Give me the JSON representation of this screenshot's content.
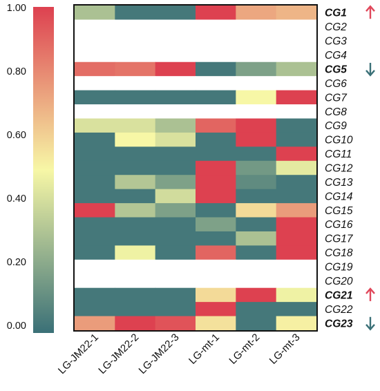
{
  "chart_data": {
    "type": "heatmap",
    "columns": [
      "LG-JM22-1",
      "LG-JM22-2",
      "LG-JM22-3",
      "LG-mt-1",
      "LG-mt-2",
      "LG-mt-3"
    ],
    "rows": [
      {
        "label": "CG1",
        "values": [
          0.3,
          0.03,
          0.03,
          1.0,
          0.72,
          0.68
        ],
        "highlight": "up"
      },
      {
        "label": "CG2",
        "values": [
          null,
          null,
          null,
          null,
          null,
          null
        ]
      },
      {
        "label": "CG3",
        "values": [
          null,
          null,
          null,
          null,
          null,
          null
        ]
      },
      {
        "label": "CG4",
        "values": [
          null,
          null,
          null,
          null,
          null,
          null
        ]
      },
      {
        "label": "CG5",
        "values": [
          0.88,
          0.86,
          1.0,
          0.03,
          0.18,
          0.3
        ],
        "highlight": "down"
      },
      {
        "label": "CG6",
        "values": [
          null,
          null,
          null,
          null,
          null,
          null
        ]
      },
      {
        "label": "CG7",
        "values": [
          0.03,
          0.03,
          0.03,
          0.03,
          0.5,
          1.0
        ]
      },
      {
        "label": "CG8",
        "values": [
          null,
          null,
          null,
          null,
          null,
          null
        ]
      },
      {
        "label": "CG9",
        "values": [
          0.42,
          0.42,
          0.3,
          0.9,
          1.0,
          0.03
        ]
      },
      {
        "label": "CG10",
        "values": [
          0.03,
          0.5,
          0.42,
          0.03,
          1.0,
          0.03
        ]
      },
      {
        "label": "CG11",
        "values": [
          0.03,
          0.03,
          0.03,
          0.03,
          0.03,
          1.0
        ]
      },
      {
        "label": "CG12",
        "values": [
          0.03,
          0.03,
          0.03,
          1.0,
          0.15,
          0.45
        ]
      },
      {
        "label": "CG13",
        "values": [
          0.03,
          0.32,
          0.18,
          1.0,
          0.1,
          0.03
        ]
      },
      {
        "label": "CG14",
        "values": [
          0.03,
          0.03,
          0.4,
          1.0,
          0.03,
          0.03
        ]
      },
      {
        "label": "CG15",
        "values": [
          1.0,
          0.32,
          0.18,
          0.03,
          0.58,
          0.75
        ]
      },
      {
        "label": "CG16",
        "values": [
          0.03,
          0.03,
          0.03,
          0.18,
          0.03,
          1.0
        ]
      },
      {
        "label": "CG17",
        "values": [
          0.03,
          0.03,
          0.03,
          0.03,
          0.3,
          1.0
        ]
      },
      {
        "label": "CG18",
        "values": [
          0.03,
          0.48,
          0.03,
          0.9,
          0.03,
          1.0
        ]
      },
      {
        "label": "CG19",
        "values": [
          null,
          null,
          null,
          null,
          null,
          null
        ]
      },
      {
        "label": "CG20",
        "values": [
          null,
          null,
          null,
          null,
          null,
          null
        ]
      },
      {
        "label": "CG21",
        "values": [
          0.03,
          0.03,
          0.03,
          0.58,
          1.0,
          0.48
        ],
        "highlight": "up"
      },
      {
        "label": "CG22",
        "values": [
          0.03,
          0.03,
          0.03,
          1.0,
          0.03,
          0.03
        ]
      },
      {
        "label": "CG23",
        "values": [
          0.75,
          1.0,
          0.95,
          0.56,
          0.03,
          0.52
        ],
        "highlight": "down"
      }
    ],
    "colorbar": {
      "range": [
        0.0,
        1.0
      ],
      "ticks": [
        "1.00",
        "0.80",
        "0.60",
        "0.40",
        "0.20",
        "0.00"
      ],
      "stops": [
        "#3a7077",
        "#f7f7a6",
        "#dd4150"
      ]
    },
    "highlight_colors": {
      "up": "#e0475a",
      "down": "#3a7077"
    },
    "empty_cell_color": "#ffffff"
  }
}
